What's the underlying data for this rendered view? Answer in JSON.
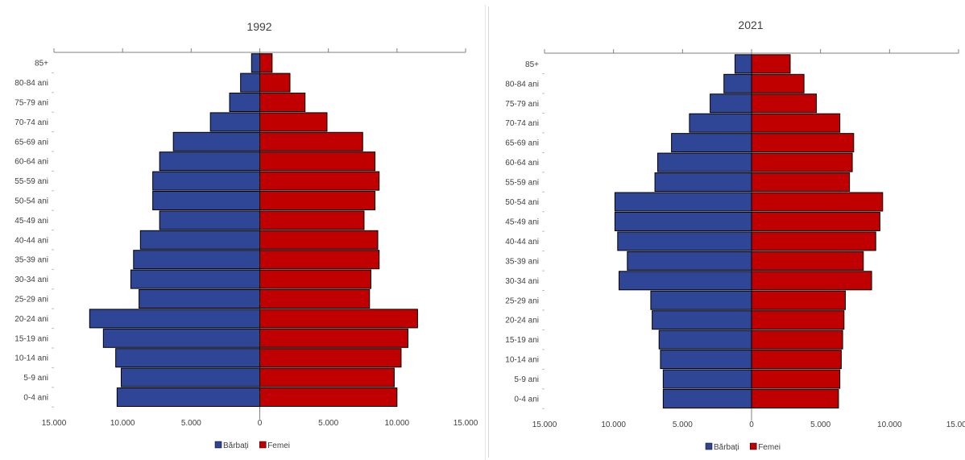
{
  "chart_data": [
    {
      "type": "bar",
      "orientation": "horizontal-population-pyramid",
      "title": "1992",
      "categories": [
        "0-4 ani",
        "5-9 ani",
        "10-14 ani",
        "15-19 ani",
        "20-24 ani",
        "25-29 ani",
        "30-34 ani",
        "35-39 ani",
        "40-44 ani",
        "45-49 ani",
        "50-54 ani",
        "55-59 ani",
        "60-64 ani",
        "65-69 ani",
        "70-74 ani",
        "75-79 ani",
        "80-84 ani",
        "85+"
      ],
      "series": [
        {
          "name": "Bărbați",
          "color": "#2F4596",
          "values": [
            10400,
            10100,
            10500,
            11400,
            12400,
            8800,
            9400,
            9200,
            8700,
            7300,
            7800,
            7800,
            7300,
            6300,
            3600,
            2200,
            1400,
            600
          ]
        },
        {
          "name": "Femei",
          "color": "#C00000",
          "values": [
            10000,
            9800,
            10300,
            10800,
            11500,
            8000,
            8100,
            8700,
            8600,
            7600,
            8400,
            8700,
            8400,
            7500,
            4900,
            3300,
            2200,
            900
          ]
        }
      ],
      "xlim": [
        -15000,
        15000
      ],
      "x_ticks": [
        -15000,
        -10000,
        -5000,
        0,
        5000,
        10000,
        15000
      ],
      "x_tick_labels": [
        "15.000",
        "10.000",
        "5.000",
        "0",
        "5.000",
        "10.000",
        "15.000"
      ],
      "legend_position": "bottom"
    },
    {
      "type": "bar",
      "orientation": "horizontal-population-pyramid",
      "title": "2021",
      "categories": [
        "0-4 ani",
        "5-9 ani",
        "10-14 ani",
        "15-19 ani",
        "20-24 ani",
        "25-29 ani",
        "30-34 ani",
        "35-39 ani",
        "40-44 ani",
        "45-49 ani",
        "50-54 ani",
        "55-59 ani",
        "60-64 ani",
        "65-69 ani",
        "70-74 ani",
        "75-79 ani",
        "80-84 ani",
        "85+"
      ],
      "series": [
        {
          "name": "Bărbați",
          "color": "#2F4596",
          "values": [
            6400,
            6400,
            6600,
            6700,
            7200,
            7300,
            9600,
            9000,
            9700,
            9900,
            9900,
            7000,
            6800,
            5800,
            4500,
            3000,
            2000,
            1200
          ]
        },
        {
          "name": "Femei",
          "color": "#C00000",
          "values": [
            6300,
            6400,
            6500,
            6600,
            6700,
            6800,
            8700,
            8100,
            9000,
            9300,
            9500,
            7100,
            7300,
            7400,
            6400,
            4700,
            3800,
            2800
          ]
        }
      ],
      "xlim": [
        -15000,
        15000
      ],
      "x_ticks": [
        -15000,
        -10000,
        -5000,
        0,
        5000,
        10000,
        15000
      ],
      "x_tick_labels": [
        "15.000",
        "10.000",
        "5.000",
        "0",
        "5.000",
        "10.000",
        "15.000"
      ],
      "legend_position": "bottom"
    }
  ]
}
